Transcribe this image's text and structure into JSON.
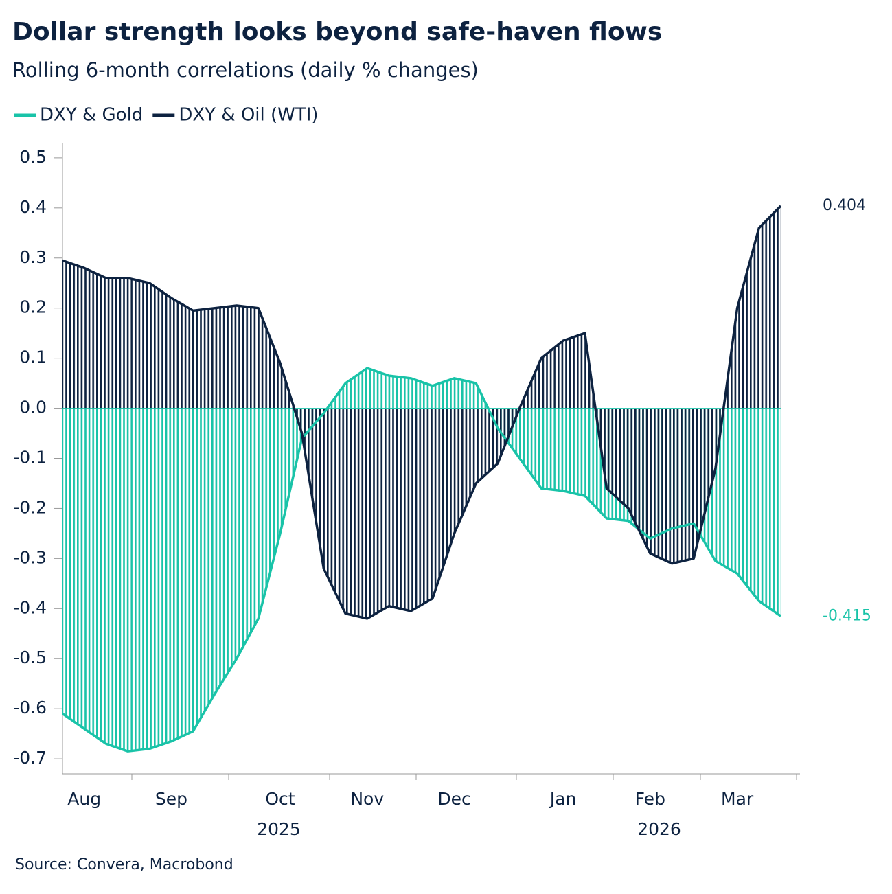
{
  "chart_data": {
    "type": "line",
    "title": "Dollar strength looks beyond safe-haven flows",
    "subtitle": "Rolling 6-month correlations (daily % changes)",
    "source": "Source: Convera, Macrobond",
    "categories": [
      null,
      "Aug",
      null,
      null,
      null,
      "Sep",
      null,
      null,
      null,
      null,
      "Oct",
      null,
      null,
      null,
      "Nov",
      null,
      null,
      null,
      "Dec",
      null,
      null,
      null,
      null,
      "Jan",
      null,
      null,
      null,
      "Feb",
      null,
      null,
      null,
      "Mar",
      null,
      null
    ],
    "x_group_labels": [
      "2025",
      "2026"
    ],
    "series": [
      {
        "name": "DXY & Gold",
        "color": "#19c3a8",
        "values": [
          -0.61,
          -0.64,
          -0.67,
          -0.685,
          -0.68,
          -0.665,
          -0.645,
          -0.57,
          -0.5,
          -0.42,
          -0.25,
          -0.06,
          -0.01,
          0.05,
          0.08,
          0.065,
          0.06,
          0.045,
          0.06,
          0.05,
          -0.04,
          -0.1,
          -0.16,
          -0.165,
          -0.175,
          -0.22,
          -0.225,
          -0.26,
          -0.24,
          -0.23,
          -0.305,
          -0.33,
          -0.385,
          -0.415
        ]
      },
      {
        "name": "DXY & Oil (WTI)",
        "color": "#0d2240",
        "values": [
          0.295,
          0.28,
          0.26,
          0.26,
          0.25,
          0.22,
          0.195,
          0.2,
          0.205,
          0.2,
          0.09,
          -0.05,
          -0.32,
          -0.41,
          -0.42,
          -0.395,
          -0.405,
          -0.38,
          -0.25,
          -0.15,
          -0.11,
          0.0,
          0.1,
          0.135,
          0.15,
          -0.16,
          -0.2,
          -0.29,
          -0.31,
          -0.3,
          -0.12,
          0.2,
          0.36,
          0.404
        ]
      }
    ],
    "ylim": [
      -0.73,
      0.53
    ],
    "yticks": [
      0.5,
      0.4,
      0.3,
      0.2,
      0.1,
      {
        "value": 0,
        "label": "0.0"
      },
      -0.1,
      -0.2,
      -0.3,
      -0.4,
      -0.5,
      -0.6,
      -0.7
    ],
    "legend": "top-left",
    "hatched_area": true
  }
}
